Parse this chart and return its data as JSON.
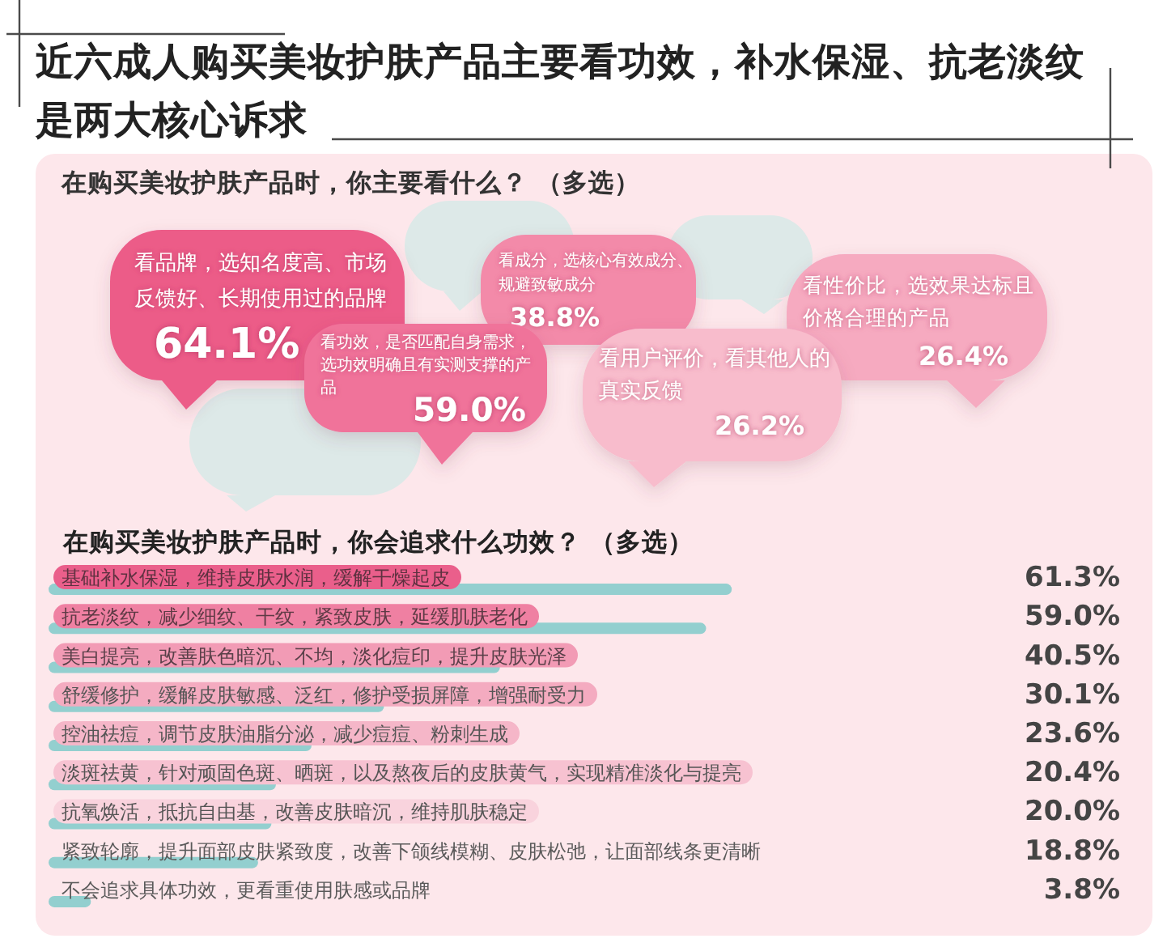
{
  "chart_data": [
    {
      "type": "other",
      "title": "近六成人购买美妆护肤产品主要看功效，补水保湿、抗老淡纹是两大核心诉求",
      "subtitle": "在购买美妆护肤产品时，你主要看什么？ （多选）",
      "categories": [
        "看品牌，选知名度高、市场反馈好、长期使用过的品牌",
        "看功效，是否匹配自身需求，选功效明确且有实测支撑的产品",
        "看成分，选核心有效成分、规避致敏成分",
        "看用户评价，看其他人的真实反馈",
        "看性价比，选效果达标且价格合理的产品"
      ],
      "values": [
        64.1,
        59.0,
        38.8,
        26.2,
        26.4
      ],
      "value_labels": [
        "64.1%",
        "59.0%",
        "38.8%",
        "26.2%",
        "26.4%"
      ],
      "colors": [
        "#ec5c88",
        "#f0739a",
        "#f38aa9",
        "#f8bccc",
        "#f6aac0"
      ]
    },
    {
      "type": "bar",
      "orientation": "horizontal",
      "title": "在购买美妆护肤产品时，你会追求什么功效？ （多选）",
      "categories": [
        "基础补水保湿，维持皮肤水润，缓解干燥起皮",
        "抗老淡纹，减少细纹、干纹，紧致皮肤，延缓肌肤老化",
        "美白提亮，改善肤色暗沉、不均，淡化痘印，提升皮肤光泽",
        "舒缓修护，缓解皮肤敏感、泛红，修护受损屏障，增强耐受力",
        "控油祛痘，调节皮肤油脂分泌，减少痘痘、粉刺生成",
        "淡斑祛黄，针对顽固色斑、晒斑，以及熬夜后的皮肤黄气，实现精准淡化与提亮",
        "抗氧焕活，抵抗自由基，改善皮肤暗沉，维持肌肤稳定",
        "紧致轮廓，提升面部皮肤紧致度，改善下颌线模糊、皮肤松弛，让面部线条更清晰",
        "不会追求具体功效，更看重使用肤感或品牌"
      ],
      "values": [
        61.3,
        59.0,
        40.5,
        30.1,
        23.6,
        20.4,
        20.0,
        18.8,
        3.8
      ],
      "value_labels": [
        "61.3%",
        "59.0%",
        "40.5%",
        "30.1%",
        "23.6%",
        "20.4%",
        "20.0%",
        "18.8%",
        "3.8%"
      ],
      "color": "#93cfcf",
      "tick_labels": "y"
    }
  ]
}
